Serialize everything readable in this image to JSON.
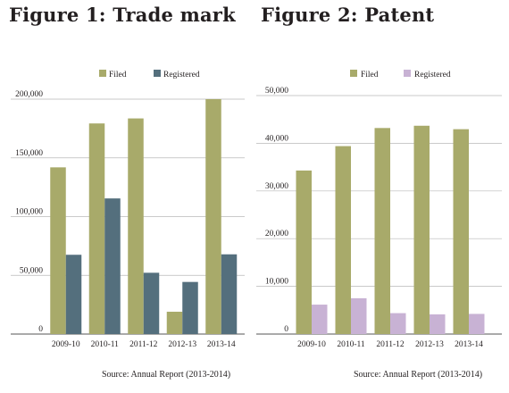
{
  "figures": [
    {
      "title": "Figure 1: Trade mark",
      "source": "Source: Annual Report (2013-2014)"
    },
    {
      "title": "Figure 2: Patent",
      "source": "Source: Annual Report (2013-2014)"
    }
  ],
  "chart_data": [
    {
      "type": "bar",
      "title": "Figure 1: Trade mark",
      "categories": [
        "2009-10",
        "2010-11",
        "2011-12",
        "2012-13",
        "2013-14"
      ],
      "series": [
        {
          "name": "Filed",
          "values": [
            141943,
            179313,
            183588,
            19000,
            200005
          ],
          "color": "#a8aa6a"
        },
        {
          "name": "Registered",
          "values": [
            67490,
            115472,
            52184,
            44361,
            67875
          ],
          "color": "#546f7d"
        }
      ],
      "yticks": [
        "0",
        "50,000",
        "100,000",
        "150,000",
        "200,000"
      ],
      "ylim": [
        0,
        200000
      ],
      "grid": true,
      "legend": "top-center",
      "xlabel": "",
      "ylabel": ""
    },
    {
      "type": "bar",
      "title": "Figure 2: Patent",
      "categories": [
        "2009-10",
        "2010-11",
        "2011-12",
        "2012-13",
        "2013-14"
      ],
      "series": [
        {
          "name": "Filed",
          "values": [
            34287,
            39400,
            43197,
            43674,
            42951
          ],
          "color": "#a8aa6a"
        },
        {
          "name": "Registered",
          "values": [
            6168,
            7509,
            4381,
            4126,
            4227
          ],
          "color": "#c8b2d4"
        }
      ],
      "yticks": [
        "0",
        "10,000",
        "20,000",
        "30,000",
        "40,000",
        "50,000"
      ],
      "ylim": [
        0,
        50000
      ],
      "grid": true,
      "legend": "top-center",
      "xlabel": "",
      "ylabel": ""
    }
  ]
}
